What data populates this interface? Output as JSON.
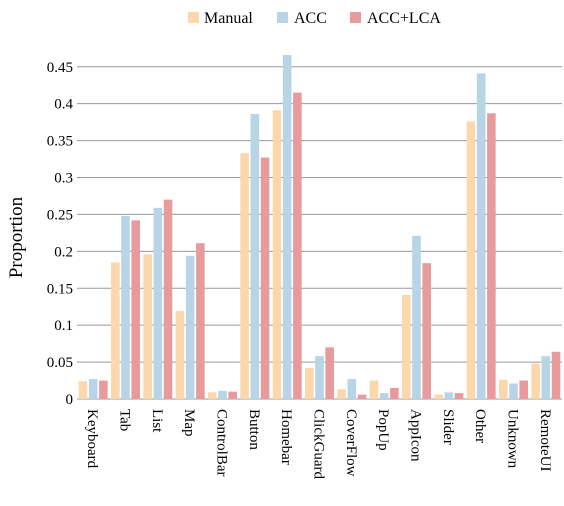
{
  "chart_data": {
    "type": "bar",
    "xlabel": "",
    "ylabel": "Proportion",
    "ylim": [
      0,
      0.47
    ],
    "yticks": [
      0,
      0.05,
      0.1,
      0.15,
      0.2,
      0.25,
      0.3,
      0.35,
      0.4,
      0.45
    ],
    "ytick_labels": [
      "0",
      "0.05",
      "0.1",
      "0.15",
      "0.2",
      "0.25",
      "0.3",
      "0.35",
      "0.4",
      "0.45"
    ],
    "grid": true,
    "legend_position": "top-center",
    "categories": [
      "Keyboard",
      "Tab",
      "List",
      "Map",
      "ControlBar",
      "Button",
      "Homebar",
      "ClickGuard",
      "CoverFlow",
      "PopUp",
      "AppIcon",
      "Slider",
      "Other",
      "Unknown",
      "RemoteUI"
    ],
    "series": [
      {
        "name": "Manual",
        "color": "#fbd7ac",
        "values": [
          0.024,
          0.185,
          0.196,
          0.119,
          0.009,
          0.333,
          0.391,
          0.042,
          0.013,
          0.025,
          0.141,
          0.006,
          0.376,
          0.026,
          0.048
        ]
      },
      {
        "name": "ACC",
        "color": "#b7d5e6",
        "values": [
          0.027,
          0.248,
          0.259,
          0.194,
          0.011,
          0.386,
          0.466,
          0.058,
          0.027,
          0.008,
          0.221,
          0.009,
          0.441,
          0.021,
          0.058
        ]
      },
      {
        "name": "ACC+LCA",
        "color": "#e89b9c",
        "values": [
          0.025,
          0.242,
          0.27,
          0.211,
          0.01,
          0.327,
          0.415,
          0.07,
          0.006,
          0.015,
          0.184,
          0.008,
          0.387,
          0.025,
          0.064
        ]
      }
    ]
  }
}
